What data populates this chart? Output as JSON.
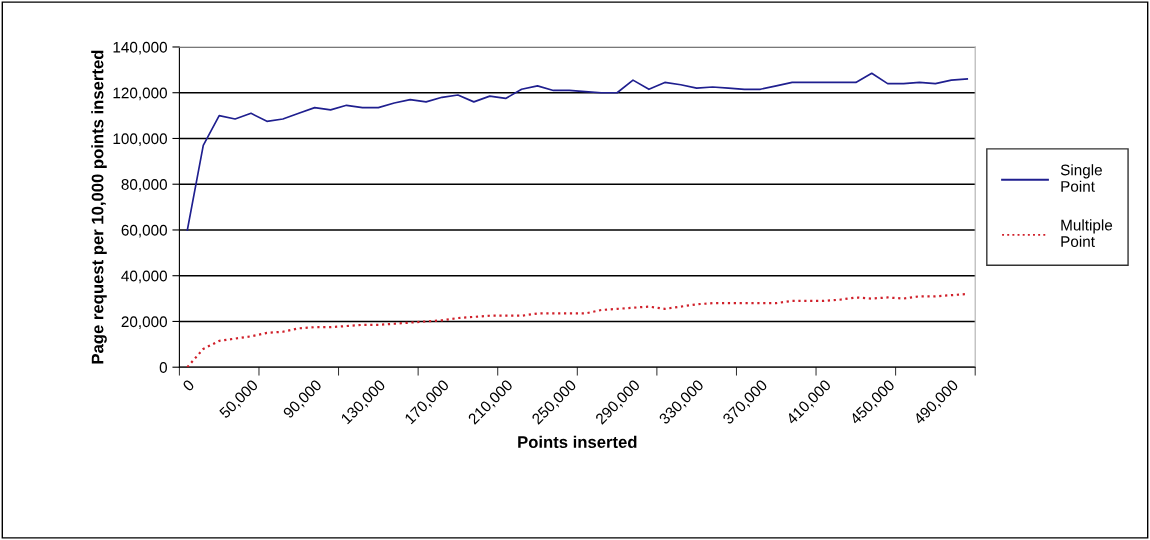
{
  "chart_data": {
    "type": "line",
    "xlabel": "Points inserted",
    "ylabel": "Page request per 10,000 points inserted",
    "categories": [
      "0",
      null,
      null,
      null,
      "50,000",
      null,
      null,
      null,
      "90,000",
      null,
      null,
      null,
      "130,000",
      null,
      null,
      null,
      "170,000",
      null,
      null,
      null,
      "210,000",
      null,
      null,
      null,
      "250,000",
      null,
      null,
      null,
      "290,000",
      null,
      null,
      null,
      "330,000",
      null,
      null,
      null,
      "370,000",
      null,
      null,
      null,
      "410,000",
      null,
      null,
      null,
      "450,000",
      null,
      null,
      null,
      "490,000",
      null
    ],
    "series": [
      {
        "name": "Single Point",
        "color": "#1f1f8f",
        "line_style": "solid",
        "values": [
          60000,
          97000,
          110000,
          108500,
          111000,
          107500,
          108500,
          111000,
          113500,
          112500,
          114500,
          113500,
          113500,
          115500,
          117000,
          116000,
          118000,
          119000,
          116000,
          118500,
          117500,
          121500,
          123000,
          121000,
          121000,
          120500,
          120000,
          120000,
          125500,
          121500,
          124500,
          123500,
          122000,
          122500,
          122000,
          121500,
          121500,
          123000,
          124500,
          124500,
          124500,
          124500,
          124500,
          128500,
          124000,
          124000,
          124500,
          124000,
          125500,
          126000
        ]
      },
      {
        "name": "Multiple Point",
        "color": "#d0202a",
        "line_style": "dotted",
        "values": [
          0,
          8000,
          11500,
          12500,
          13500,
          15000,
          15500,
          17000,
          17500,
          17500,
          18000,
          18500,
          18500,
          19000,
          19500,
          20000,
          20500,
          21500,
          22000,
          22500,
          22500,
          22500,
          23500,
          23500,
          23500,
          23500,
          25000,
          25500,
          26000,
          26500,
          25500,
          26500,
          27500,
          28000,
          28000,
          28000,
          28000,
          28000,
          29000,
          29000,
          29000,
          29500,
          30500,
          30000,
          30500,
          30000,
          31000,
          31000,
          31500,
          32000
        ]
      }
    ],
    "ylim": [
      0,
      140000
    ],
    "yticks": [
      {
        "value": 0,
        "label": "0"
      },
      {
        "value": 20000,
        "label": "20,000"
      },
      {
        "value": 40000,
        "label": "40,000"
      },
      {
        "value": 60000,
        "label": "60,000"
      },
      {
        "value": 80000,
        "label": "80,000"
      },
      {
        "value": 100000,
        "label": "100,000"
      },
      {
        "value": 120000,
        "label": "120,000"
      },
      {
        "value": 140000,
        "label": "140,000"
      }
    ],
    "grid": "y",
    "legend": "right",
    "marker": "none"
  }
}
